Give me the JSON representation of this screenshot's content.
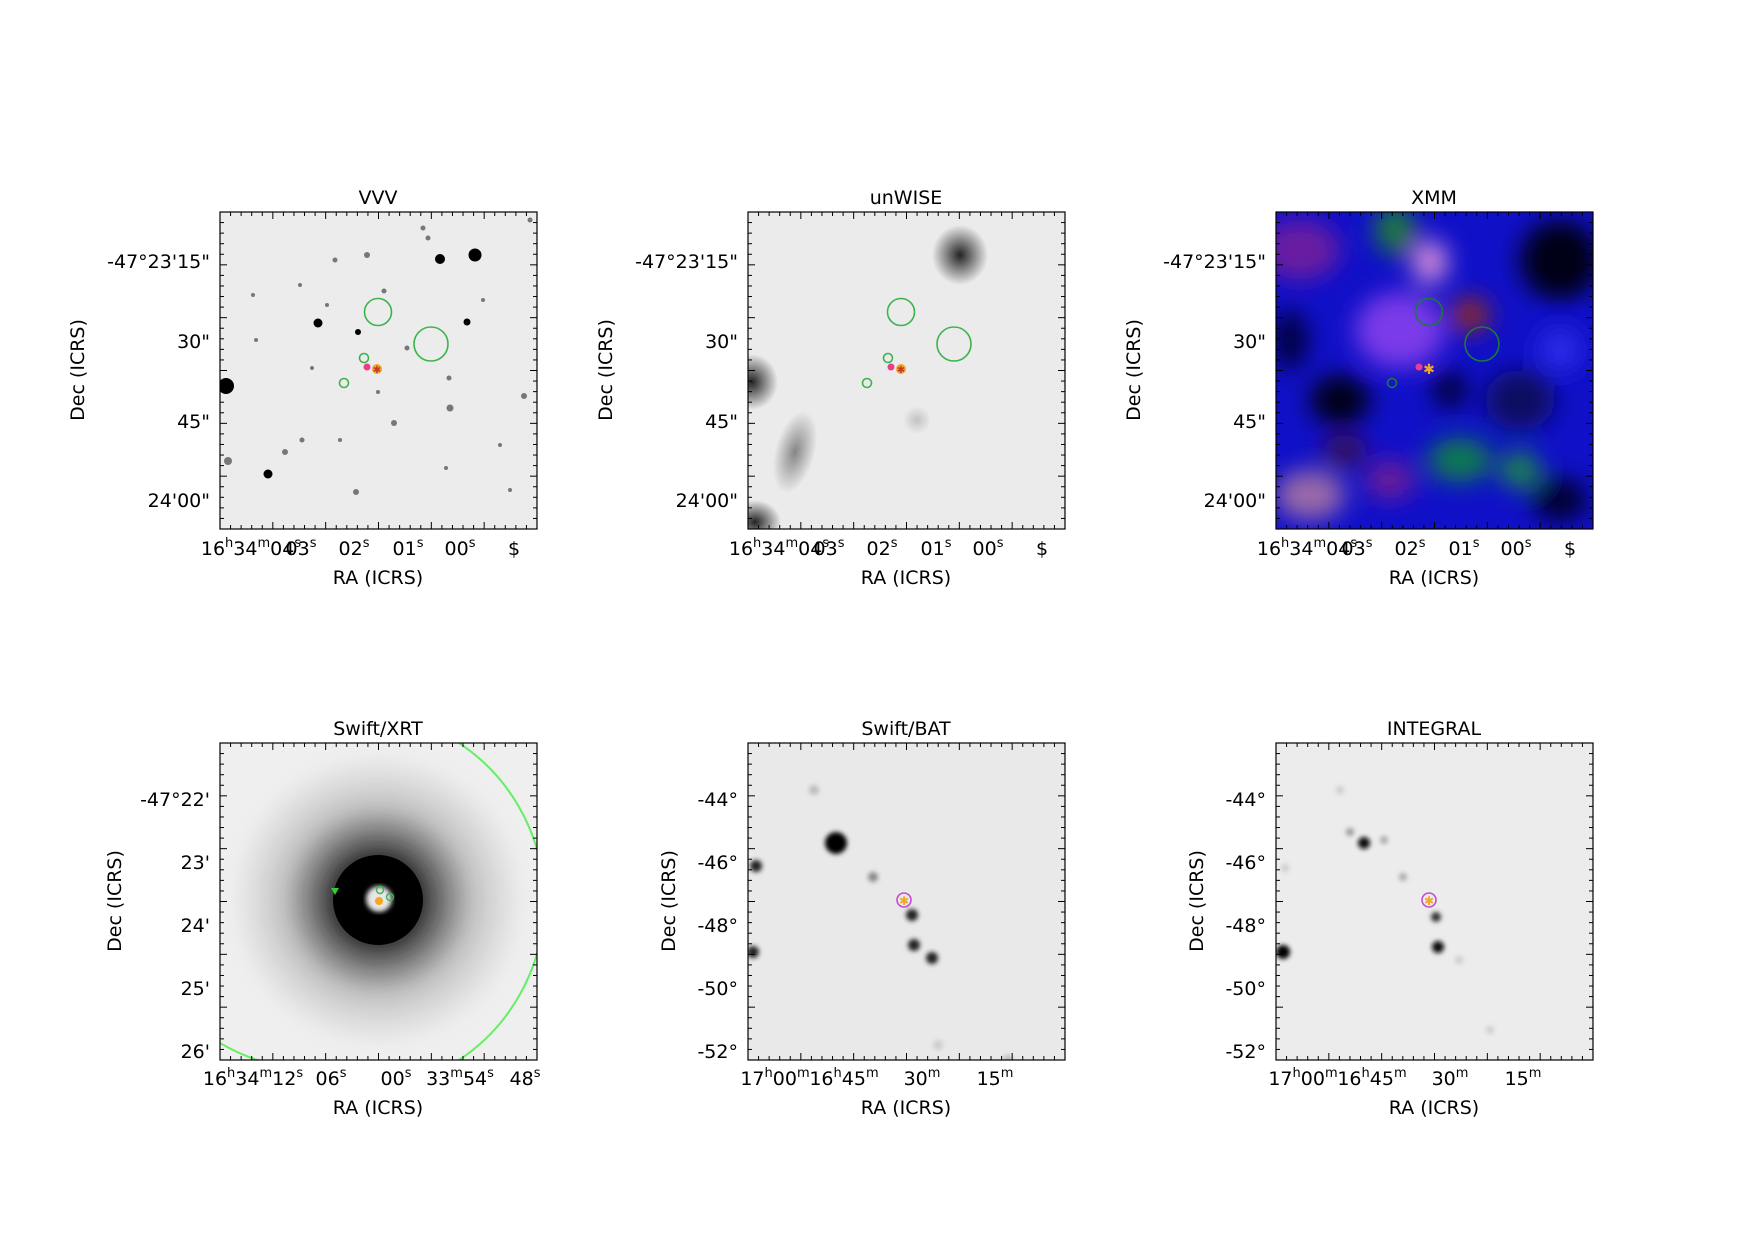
{
  "figure": {
    "panels": [
      {
        "title": "VVV",
        "xlabel": "RA (ICRS)",
        "ylabel": "Dec (ICRS)",
        "xticks": [
          "16^h34^m04^s",
          "03^s",
          "02^s",
          "01^s",
          "00^s",
          "$"
        ],
        "yticks": [
          "-47°23'15\"",
          "30\"",
          "45\"",
          "24'00\""
        ],
        "image": "grayscale star field",
        "markers": [
          "green circles",
          "pink marker",
          "orange star"
        ]
      },
      {
        "title": "unWISE",
        "xlabel": "RA (ICRS)",
        "ylabel": "Dec (ICRS)",
        "xticks": [
          "16^h34^m04^s",
          "03^s",
          "02^s",
          "01^s",
          "00^s",
          "$"
        ],
        "yticks": [
          "-47°23'15\"",
          "30\"",
          "45\"",
          "24'00\""
        ],
        "image": "grayscale infrared map",
        "markers": [
          "green circles",
          "pink marker",
          "orange star"
        ]
      },
      {
        "title": "XMM",
        "xlabel": "RA (ICRS)",
        "ylabel": "Dec (ICRS)",
        "xticks": [
          "16^h34^m04^s",
          "03^s",
          "02^s",
          "01^s",
          "00^s",
          "$"
        ],
        "yticks": [
          "-47°23'15\"",
          "30\"",
          "45\"",
          "24'00\""
        ],
        "image": "rgb x-ray map",
        "markers": [
          "green circles",
          "pink marker",
          "orange star"
        ]
      },
      {
        "title": "Swift/XRT",
        "xlabel": "RA (ICRS)",
        "ylabel": "Dec (ICRS)",
        "xticks": [
          "16^h34^m12^s",
          "06^s",
          "00^s",
          "33^m54^s",
          "48^s"
        ],
        "yticks": [
          "-47°22'",
          "23'",
          "24'",
          "25'",
          "26'"
        ],
        "image": "grayscale x-ray map with bright source",
        "markers": [
          "green arc",
          "green triangle",
          "green circles",
          "orange star"
        ]
      },
      {
        "title": "Swift/BAT",
        "xlabel": "RA (ICRS)",
        "ylabel": "Dec (ICRS)",
        "xticks": [
          "17^h00^m",
          "16^h45^m",
          "30^m",
          "15^m"
        ],
        "yticks": [
          "-44°",
          "-46°",
          "-48°",
          "-50°",
          "-52°"
        ],
        "image": "grayscale hard x-ray map",
        "markers": [
          "magenta circle",
          "orange star"
        ]
      },
      {
        "title": "INTEGRAL",
        "xlabel": "RA (ICRS)",
        "ylabel": "Dec (ICRS)",
        "xticks": [
          "17^h00^m",
          "16^h45^m",
          "30^m",
          "15^m"
        ],
        "yticks": [
          "-44°",
          "-46°",
          "-48°",
          "-50°",
          "-52°"
        ],
        "image": "grayscale hard x-ray map",
        "markers": [
          "magenta circle",
          "orange star"
        ]
      }
    ]
  },
  "chart_data": [
    {
      "type": "heatmap",
      "title": "VVV",
      "xlabel": "RA (ICRS)",
      "ylabel": "Dec (ICRS)",
      "xticks": [
        "16h34m04s",
        "03s",
        "02s",
        "01s",
        "00s",
        "$"
      ],
      "yticks": [
        "-47°23'15\"",
        "30\"",
        "45\"",
        "24'00\""
      ]
    },
    {
      "type": "heatmap",
      "title": "unWISE",
      "xlabel": "RA (ICRS)",
      "ylabel": "Dec (ICRS)",
      "xticks": [
        "16h34m04s",
        "03s",
        "02s",
        "01s",
        "00s",
        "$"
      ],
      "yticks": [
        "-47°23'15\"",
        "30\"",
        "45\"",
        "24'00\""
      ]
    },
    {
      "type": "heatmap",
      "title": "XMM",
      "xlabel": "RA (ICRS)",
      "ylabel": "Dec (ICRS)",
      "xticks": [
        "16h34m04s",
        "03s",
        "02s",
        "01s",
        "00s",
        "$"
      ],
      "yticks": [
        "-47°23'15\"",
        "30\"",
        "45\"",
        "24'00\""
      ]
    },
    {
      "type": "heatmap",
      "title": "Swift/XRT",
      "xlabel": "RA (ICRS)",
      "ylabel": "Dec (ICRS)",
      "xticks": [
        "16h34m12s",
        "06s",
        "00s",
        "33m54s",
        "48s"
      ],
      "yticks": [
        "-47°22'",
        "23'",
        "24'",
        "25'",
        "26'"
      ]
    },
    {
      "type": "heatmap",
      "title": "Swift/BAT",
      "xlabel": "RA (ICRS)",
      "ylabel": "Dec (ICRS)",
      "xticks": [
        "17h00m",
        "16h45m",
        "30m",
        "15m"
      ],
      "yticks": [
        "-44°",
        "-46°",
        "-48°",
        "-50°",
        "-52°"
      ]
    },
    {
      "type": "heatmap",
      "title": "INTEGRAL",
      "xlabel": "RA (ICRS)",
      "ylabel": "Dec (ICRS)",
      "xticks": [
        "17h00m",
        "16h45m",
        "30m",
        "15m"
      ],
      "yticks": [
        "-44°",
        "-46°",
        "-48°",
        "-50°",
        "-52°"
      ]
    }
  ],
  "colors": {
    "marker_green": "#3cb44b",
    "marker_pink": "#e83e8c",
    "marker_orange": "#f5a623",
    "marker_magenta": "#c04fd0",
    "arc_green": "#66ee66"
  }
}
